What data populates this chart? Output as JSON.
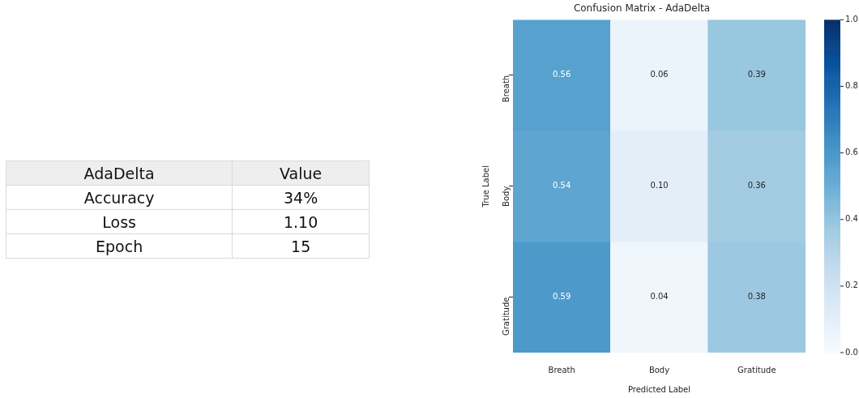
{
  "chart_data": [
    {
      "type": "other",
      "annotations": [
        "AdaDelta",
        "Value",
        "Accuracy",
        "34%",
        "Loss",
        "1.10",
        "Epoch",
        "15"
      ]
    },
    {
      "type": "heatmap",
      "title": "Confusion Matrix - AdaDelta",
      "xlabel": "Predicted Label",
      "ylabel": "True Label",
      "categories": [
        "Breath",
        "Body",
        "Gratitude"
      ],
      "y_categories": [
        "Breath",
        "Body",
        "Gratitude"
      ],
      "cells": [
        [
          0.56,
          0.06,
          0.39
        ],
        [
          0.54,
          0.1,
          0.36
        ],
        [
          0.59,
          0.04,
          0.38
        ]
      ],
      "cell_labels": [
        [
          "0.56",
          "0.06",
          "0.39"
        ],
        [
          "0.54",
          "0.10",
          "0.36"
        ],
        [
          "0.59",
          "0.04",
          "0.38"
        ]
      ],
      "data_labels": true,
      "clim": [
        0,
        1
      ],
      "cticks": [
        {
          "value": 0,
          "label": "0.0"
        },
        0.2,
        0.4,
        0.6,
        0.8,
        {
          "value": 1,
          "label": "1.0"
        }
      ]
    }
  ]
}
